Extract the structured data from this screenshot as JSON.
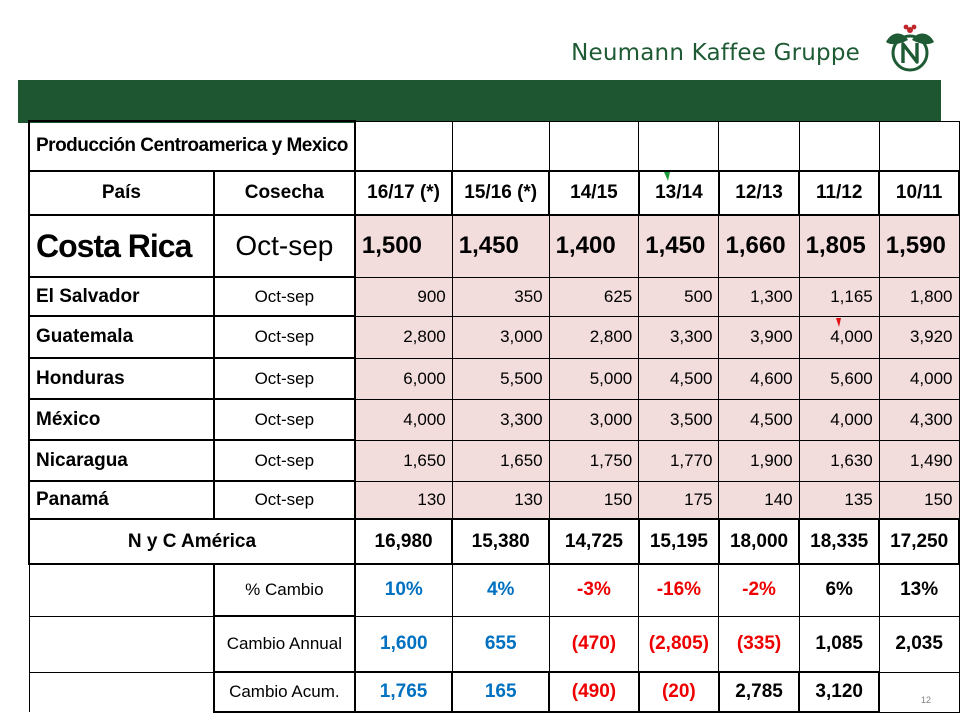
{
  "brand": {
    "name": "Neumann Kaffee Gruppe",
    "logo_icon": "nkg-leaf-logo-icon",
    "color": "#1e5a33"
  },
  "band_color": "#1e5631",
  "table": {
    "title": "Producción Centroamerica y Mexico",
    "headers": [
      "País",
      "Cosecha",
      "16/17 (*)",
      "15/16 (*)",
      "14/15",
      "13/14",
      "12/13",
      "11/12",
      "10/11"
    ],
    "rows": [
      {
        "country": "Costa Rica",
        "harvest": "Oct-sep",
        "values": [
          "1,500",
          "1,450",
          "1,400",
          "1,450",
          "1,660",
          "1,805",
          "1,590"
        ]
      },
      {
        "country": "El Salvador",
        "harvest": "Oct-sep",
        "values": [
          "900",
          "350",
          "625",
          "500",
          "1,300",
          "1,165",
          "1,800"
        ]
      },
      {
        "country": "Guatemala",
        "harvest": "Oct-sep",
        "values": [
          "2,800",
          "3,000",
          "2,800",
          "3,300",
          "3,900",
          "4,000",
          "3,920"
        ]
      },
      {
        "country": "Honduras",
        "harvest": "Oct-sep",
        "values": [
          "6,000",
          "5,500",
          "5,000",
          "4,500",
          "4,600",
          "5,600",
          "4,000"
        ]
      },
      {
        "country": "México",
        "harvest": "Oct-sep",
        "values": [
          "4,000",
          "3,300",
          "3,000",
          "3,500",
          "4,500",
          "4,000",
          "4,300"
        ]
      },
      {
        "country": "Nicaragua",
        "harvest": "Oct-sep",
        "values": [
          "1,650",
          "1,650",
          "1,750",
          "1,770",
          "1,900",
          "1,630",
          "1,490"
        ]
      },
      {
        "country": "Panamá",
        "harvest": "Oct-sep",
        "values": [
          "130",
          "130",
          "150",
          "175",
          "140",
          "135",
          "150"
        ]
      }
    ],
    "total": {
      "label": "N y C América",
      "values": [
        "16,980",
        "15,380",
        "14,725",
        "15,195",
        "18,000",
        "18,335",
        "17,250"
      ]
    },
    "pct_change": {
      "label": "% Cambio",
      "values": [
        "10%",
        "4%",
        "-3%",
        "-16%",
        "-2%",
        "6%",
        "13%"
      ]
    },
    "annual_change": {
      "label": "Cambio Annual",
      "values": [
        "1,600",
        "655",
        "(470)",
        "(2,805)",
        "(335)",
        "1,085",
        "2,035"
      ]
    },
    "cumulative_change": {
      "label": "Cambio Acum.",
      "values": [
        "1,765",
        "165",
        "(490)",
        "(20)",
        "2,785",
        "3,120",
        ""
      ]
    },
    "colors": {
      "positive": "#0070c0",
      "negative": "#ee0000",
      "neutral": "#000000",
      "cell_fill": "#f2dcdc"
    }
  },
  "page_number": "12"
}
